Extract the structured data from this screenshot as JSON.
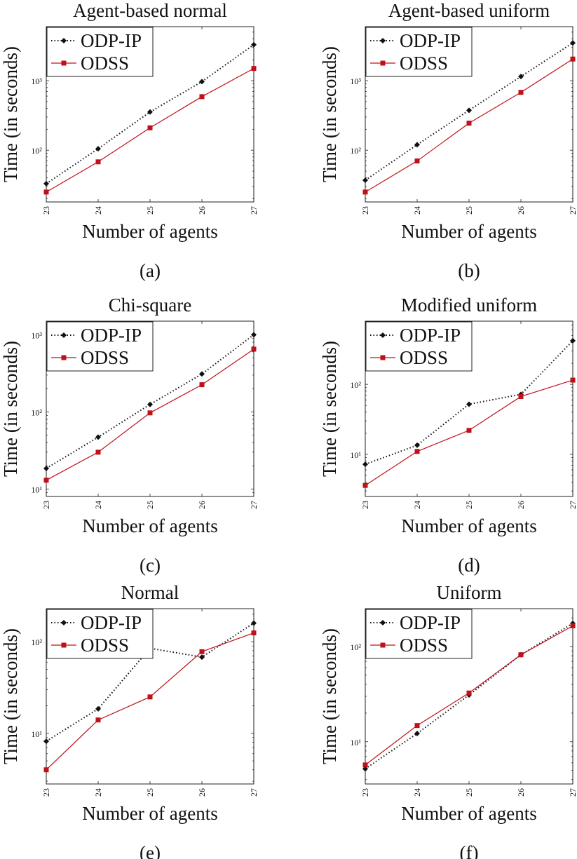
{
  "figure": {
    "legend_entries": [
      "ODP-IP",
      "ODSS"
    ],
    "series_colors": {
      "ODP-IP": "#111111",
      "ODSS": "#c0101a"
    }
  },
  "chart_data": [
    {
      "type": "line",
      "panel": "a",
      "caption": "(a)",
      "title": "Agent-based normal",
      "xlabel": "Number of agents",
      "ylabel": "Time (in seconds)",
      "yscale": "log",
      "ylim": [
        18,
        6000
      ],
      "x": [
        23,
        24,
        25,
        26,
        27
      ],
      "xtick_labels": [
        "23",
        "24",
        "25",
        "26",
        "27"
      ],
      "ytick_values": [
        100,
        1000
      ],
      "ytick_labels": [
        "10²",
        "10³"
      ],
      "legend": "top-left",
      "series": [
        {
          "name": "ODP-IP",
          "style": "dotted",
          "marker": "diamond",
          "values": [
            33,
            105,
            355,
            970,
            3300
          ]
        },
        {
          "name": "ODSS",
          "style": "solid",
          "marker": "square",
          "values": [
            25,
            68,
            210,
            590,
            1500
          ]
        }
      ]
    },
    {
      "type": "line",
      "panel": "b",
      "caption": "(b)",
      "title": "Agent-based uniform",
      "xlabel": "Number of agents",
      "ylabel": "Time (in seconds)",
      "yscale": "log",
      "ylim": [
        18,
        6000
      ],
      "x": [
        23,
        24,
        25,
        26,
        27
      ],
      "xtick_labels": [
        "23",
        "24",
        "25",
        "26",
        "27"
      ],
      "ytick_values": [
        100,
        1000
      ],
      "ytick_labels": [
        "10²",
        "10³"
      ],
      "legend": "top-left",
      "series": [
        {
          "name": "ODP-IP",
          "style": "dotted",
          "marker": "diamond",
          "values": [
            37,
            120,
            375,
            1150,
            3500
          ]
        },
        {
          "name": "ODSS",
          "style": "solid",
          "marker": "square",
          "values": [
            25,
            70,
            245,
            680,
            2050
          ]
        }
      ]
    },
    {
      "type": "line",
      "panel": "c",
      "caption": "(c)",
      "title": "Chi-square",
      "xlabel": "Number of agents",
      "ylabel": "Time (in seconds)",
      "yscale": "log",
      "ylim": [
        8,
        1500
      ],
      "x": [
        23,
        24,
        25,
        26,
        27
      ],
      "xtick_labels": [
        "23",
        "24",
        "25",
        "26",
        "27"
      ],
      "ytick_values": [
        10,
        100,
        1000
      ],
      "ytick_labels": [
        "10¹",
        "10²",
        "10³"
      ],
      "legend": "top-left",
      "series": [
        {
          "name": "ODP-IP",
          "style": "dotted",
          "marker": "diamond",
          "values": [
            18.5,
            47,
            125,
            310,
            1000
          ]
        },
        {
          "name": "ODSS",
          "style": "solid",
          "marker": "square",
          "values": [
            13,
            30,
            97,
            225,
            650
          ]
        }
      ]
    },
    {
      "type": "line",
      "panel": "d",
      "caption": "(d)",
      "title": "Modified uniform",
      "xlabel": "Number of agents",
      "ylabel": "Time (in seconds)",
      "yscale": "log",
      "ylim": [
        2.5,
        800
      ],
      "x": [
        23,
        24,
        25,
        26,
        27
      ],
      "xtick_labels": [
        "23",
        "24",
        "25",
        "26",
        "27"
      ],
      "ytick_values": [
        10,
        100
      ],
      "ytick_labels": [
        "10¹",
        "10²"
      ],
      "legend": "top-left",
      "series": [
        {
          "name": "ODP-IP",
          "style": "dotted",
          "marker": "diamond",
          "values": [
            7.2,
            13.5,
            52,
            72,
            420
          ]
        },
        {
          "name": "ODSS",
          "style": "solid",
          "marker": "square",
          "values": [
            3.6,
            11,
            22,
            67,
            115
          ]
        }
      ]
    },
    {
      "type": "line",
      "panel": "e",
      "caption": "(e)",
      "title": "Normal",
      "xlabel": "Number of agents",
      "ylabel": "Time (in seconds)",
      "yscale": "log",
      "ylim": [
        2.8,
        230
      ],
      "x": [
        23,
        24,
        25,
        26,
        27
      ],
      "xtick_labels": [
        "23",
        "24",
        "25",
        "26",
        "27"
      ],
      "ytick_values": [
        10,
        100
      ],
      "ytick_labels": [
        "10¹",
        "10²"
      ],
      "legend": "top-left",
      "series": [
        {
          "name": "ODP-IP",
          "style": "dotted",
          "marker": "diamond",
          "values": [
            8.2,
            18.5,
            85,
            68,
            160
          ]
        },
        {
          "name": "ODSS",
          "style": "solid",
          "marker": "square",
          "values": [
            4,
            14,
            25,
            78,
            125
          ]
        }
      ]
    },
    {
      "type": "line",
      "panel": "f",
      "caption": "(f)",
      "title": "Uniform",
      "xlabel": "Number of agents",
      "ylabel": "Time (in seconds)",
      "yscale": "log",
      "ylim": [
        3.6,
        250
      ],
      "x": [
        23,
        24,
        25,
        26,
        27
      ],
      "xtick_labels": [
        "23",
        "24",
        "25",
        "26",
        "27"
      ],
      "ytick_values": [
        10,
        100
      ],
      "ytick_labels": [
        "10¹",
        "10²"
      ],
      "legend": "top-left",
      "series": [
        {
          "name": "ODP-IP",
          "style": "dotted",
          "marker": "diamond",
          "values": [
            5.2,
            12.2,
            31,
            82,
            175
          ]
        },
        {
          "name": "ODSS",
          "style": "solid",
          "marker": "square",
          "values": [
            5.7,
            14.8,
            32.5,
            82,
            165
          ]
        }
      ]
    }
  ]
}
